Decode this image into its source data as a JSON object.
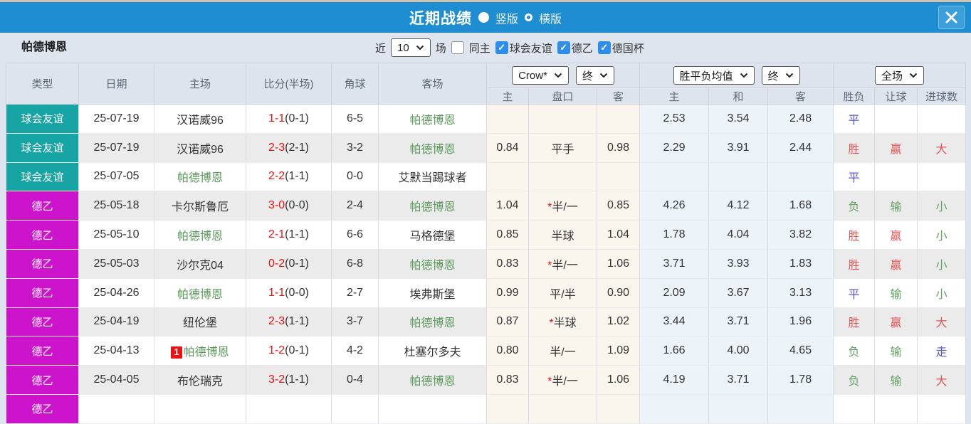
{
  "title_bar": {
    "title": "近期战绩",
    "radio_vertical": "竖版",
    "radio_horizontal": "横版"
  },
  "filter_bar": {
    "team": "帕德博恩",
    "recent_label": "近",
    "recent_value": "10",
    "games_label": "场",
    "same_home_label": "同主",
    "league_filters": [
      {
        "label": "球会友谊",
        "checked": true
      },
      {
        "label": "德乙",
        "checked": true
      },
      {
        "label": "德国杯",
        "checked": true
      }
    ]
  },
  "table": {
    "columns": [
      "类型",
      "日期",
      "主场",
      "比分(半场)",
      "角球",
      "客场"
    ],
    "sub_columns": [
      "主",
      "盘口",
      "客",
      "主",
      "和",
      "客",
      "胜负",
      "让球",
      "进球数"
    ],
    "dropdowns": {
      "odds_source": "Crow*",
      "odds_state": "终",
      "mean": "胜平负均值",
      "mean_state": "终",
      "scope": "全场"
    },
    "type_colors": {
      "球会友谊": "#16a4a4",
      "德乙": "#cc14cc"
    },
    "value_colors": {
      "胜": "#e25555",
      "平": "#5454d6",
      "负": "#63a163",
      "赢": "#e25555",
      "输": "#63a163",
      "走": "#5454d6",
      "大": "#e25555",
      "小": "#63a163"
    },
    "rows": [
      {
        "type": "球会友谊",
        "date": "25-07-19",
        "home": "汉诺威96",
        "home_self": false,
        "home_badge": "",
        "score": "1-1",
        "half": "(0-1)",
        "corner": "6-5",
        "away": "帕德博恩",
        "away_self": true,
        "odds_home": "",
        "handicap": "",
        "handicap_star": false,
        "odds_away": "",
        "mean_home": "2.53",
        "mean_draw": "3.54",
        "mean_away": "2.48",
        "result": "平",
        "handicap_result": "",
        "goals": ""
      },
      {
        "type": "球会友谊",
        "date": "25-07-19",
        "home": "汉诺威96",
        "home_self": false,
        "home_badge": "",
        "score": "2-3",
        "half": "(2-1)",
        "corner": "3-2",
        "away": "帕德博恩",
        "away_self": true,
        "odds_home": "0.84",
        "handicap": "平手",
        "handicap_star": false,
        "odds_away": "0.98",
        "mean_home": "2.29",
        "mean_draw": "3.91",
        "mean_away": "2.44",
        "result": "胜",
        "handicap_result": "赢",
        "goals": "大"
      },
      {
        "type": "球会友谊",
        "date": "25-07-05",
        "home": "帕德博恩",
        "home_self": true,
        "home_badge": "",
        "score": "2-2",
        "half": "(1-1)",
        "corner": "0-0",
        "away": "艾默当踢球者",
        "away_self": false,
        "odds_home": "",
        "handicap": "",
        "handicap_star": false,
        "odds_away": "",
        "mean_home": "",
        "mean_draw": "",
        "mean_away": "",
        "result": "平",
        "handicap_result": "",
        "goals": ""
      },
      {
        "type": "德乙",
        "date": "25-05-18",
        "home": "卡尔斯鲁厄",
        "home_self": false,
        "home_badge": "",
        "score": "3-0",
        "half": "(0-0)",
        "corner": "2-4",
        "away": "帕德博恩",
        "away_self": true,
        "odds_home": "1.04",
        "handicap": "半/一",
        "handicap_star": true,
        "odds_away": "0.85",
        "mean_home": "4.26",
        "mean_draw": "4.12",
        "mean_away": "1.68",
        "result": "负",
        "handicap_result": "输",
        "goals": "小"
      },
      {
        "type": "德乙",
        "date": "25-05-10",
        "home": "帕德博恩",
        "home_self": true,
        "home_badge": "",
        "score": "2-1",
        "half": "(1-1)",
        "corner": "6-6",
        "away": "马格德堡",
        "away_self": false,
        "odds_home": "0.85",
        "handicap": "半球",
        "handicap_star": false,
        "odds_away": "1.04",
        "mean_home": "1.78",
        "mean_draw": "4.04",
        "mean_away": "3.82",
        "result": "胜",
        "handicap_result": "赢",
        "goals": "小"
      },
      {
        "type": "德乙",
        "date": "25-05-03",
        "home": "沙尔克04",
        "home_self": false,
        "home_badge": "",
        "score": "0-2",
        "half": "(0-1)",
        "corner": "6-8",
        "away": "帕德博恩",
        "away_self": true,
        "odds_home": "0.83",
        "handicap": "半/一",
        "handicap_star": true,
        "odds_away": "1.06",
        "mean_home": "3.71",
        "mean_draw": "3.93",
        "mean_away": "1.83",
        "result": "胜",
        "handicap_result": "赢",
        "goals": "小"
      },
      {
        "type": "德乙",
        "date": "25-04-26",
        "home": "帕德博恩",
        "home_self": true,
        "home_badge": "",
        "score": "1-1",
        "half": "(0-0)",
        "corner": "2-7",
        "away": "埃弗斯堡",
        "away_self": false,
        "odds_home": "0.99",
        "handicap": "平/半",
        "handicap_star": false,
        "odds_away": "0.90",
        "mean_home": "2.09",
        "mean_draw": "3.67",
        "mean_away": "3.13",
        "result": "平",
        "handicap_result": "输",
        "goals": "小"
      },
      {
        "type": "德乙",
        "date": "25-04-19",
        "home": "纽伦堡",
        "home_self": false,
        "home_badge": "",
        "score": "2-3",
        "half": "(1-1)",
        "corner": "3-7",
        "away": "帕德博恩",
        "away_self": true,
        "odds_home": "0.87",
        "handicap": "半球",
        "handicap_star": true,
        "odds_away": "1.02",
        "mean_home": "3.44",
        "mean_draw": "3.71",
        "mean_away": "1.96",
        "result": "胜",
        "handicap_result": "赢",
        "goals": "大"
      },
      {
        "type": "德乙",
        "date": "25-04-13",
        "home": "帕德博恩",
        "home_self": true,
        "home_badge": "1",
        "score": "1-2",
        "half": "(0-1)",
        "corner": "4-2",
        "away": "杜塞尔多夫",
        "away_self": false,
        "odds_home": "0.80",
        "handicap": "半/一",
        "handicap_star": false,
        "odds_away": "1.09",
        "mean_home": "1.66",
        "mean_draw": "4.00",
        "mean_away": "4.65",
        "result": "负",
        "handicap_result": "输",
        "goals": "走"
      },
      {
        "type": "德乙",
        "date": "25-04-05",
        "home": "布伦瑞克",
        "home_self": false,
        "home_badge": "",
        "score": "3-2",
        "half": "(1-1)",
        "corner": "0-4",
        "away": "帕德博恩",
        "away_self": true,
        "odds_home": "0.83",
        "handicap": "半/一",
        "handicap_star": true,
        "odds_away": "1.06",
        "mean_home": "4.19",
        "mean_draw": "3.71",
        "mean_away": "1.78",
        "result": "负",
        "handicap_result": "输",
        "goals": "大"
      },
      {
        "type": "德乙",
        "date": "",
        "home": "",
        "home_self": false,
        "home_badge": "",
        "score": "",
        "half": "",
        "corner": "",
        "away": "",
        "away_self": false,
        "odds_home": "",
        "handicap": "",
        "handicap_star": false,
        "odds_away": "",
        "mean_home": "",
        "mean_draw": "",
        "mean_away": "",
        "result": "",
        "handicap_result": "",
        "goals": ""
      }
    ]
  }
}
